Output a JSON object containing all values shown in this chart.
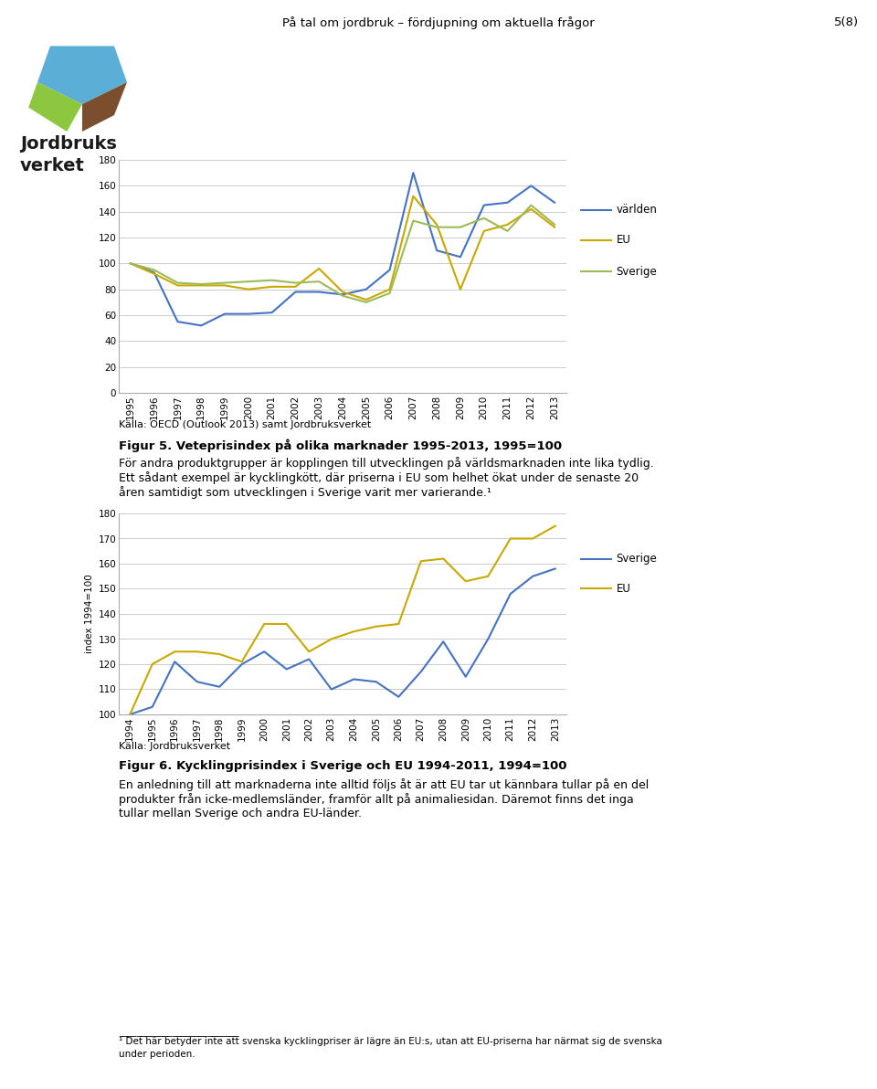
{
  "page_title": "På tal om jordbruk – fördjupning om aktuella frågor",
  "page_number": "5(8)",
  "header_bar_color": "#8DC63F",
  "fig5_years": [
    1995,
    1996,
    1997,
    1998,
    1999,
    2000,
    2001,
    2002,
    2003,
    2004,
    2005,
    2006,
    2007,
    2008,
    2009,
    2010,
    2011,
    2012,
    2013
  ],
  "fig5_varlden": [
    100,
    93,
    55,
    52,
    61,
    61,
    62,
    78,
    78,
    76,
    80,
    95,
    170,
    110,
    105,
    145,
    147,
    160,
    147
  ],
  "fig5_eu": [
    100,
    92,
    83,
    83,
    83,
    80,
    82,
    82,
    96,
    78,
    72,
    80,
    152,
    130,
    80,
    125,
    130,
    142,
    128
  ],
  "fig5_sverige": [
    100,
    95,
    85,
    84,
    85,
    86,
    87,
    85,
    86,
    75,
    70,
    77,
    133,
    128,
    128,
    135,
    125,
    145,
    130
  ],
  "fig5_varlden_color": "#4472C4",
  "fig5_eu_color": "#C9A800",
  "fig5_sverige_color": "#9BBB59",
  "fig5_ylim": [
    0,
    180
  ],
  "fig5_yticks": [
    0,
    20,
    40,
    60,
    80,
    100,
    120,
    140,
    160,
    180
  ],
  "fig6_years": [
    1994,
    1995,
    1996,
    1997,
    1998,
    1999,
    2000,
    2001,
    2002,
    2003,
    2004,
    2005,
    2006,
    2007,
    2008,
    2009,
    2010,
    2011,
    2012,
    2013
  ],
  "fig6_sverige": [
    100,
    103,
    121,
    113,
    111,
    120,
    125,
    118,
    122,
    110,
    114,
    113,
    107,
    117,
    129,
    115,
    130,
    148,
    155,
    158
  ],
  "fig6_eu": [
    100,
    120,
    125,
    125,
    124,
    121,
    136,
    136,
    125,
    130,
    133,
    135,
    136,
    161,
    162,
    153,
    155,
    170,
    170,
    175
  ],
  "fig6_sverige_color": "#4472C4",
  "fig6_eu_color": "#C9A800",
  "fig6_ylim": [
    100,
    180
  ],
  "fig6_yticks": [
    100,
    110,
    120,
    130,
    140,
    150,
    160,
    170,
    180
  ],
  "fig6_ylabel": "index 1994=100",
  "background_color": "#FFFFFF",
  "text_color": "#000000",
  "grid_color": "#CCCCCC",
  "line_width": 1.5,
  "fig_w": 9.6,
  "fig_h": 11.92
}
